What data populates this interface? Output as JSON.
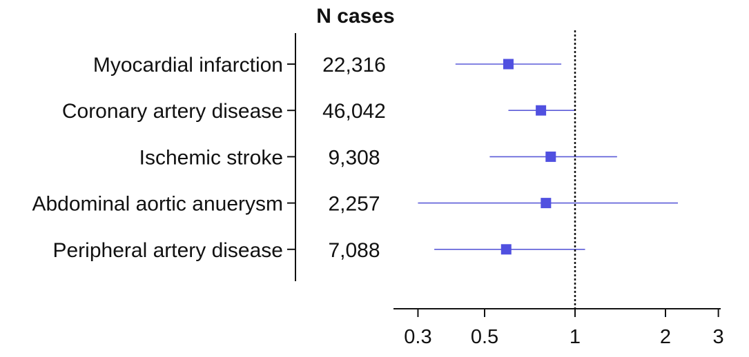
{
  "chart_data": {
    "type": "forest",
    "column_header": "N cases",
    "rows": [
      {
        "label": "Myocardial infarction",
        "n_cases": "22,316",
        "estimate": 0.6,
        "ci": [
          0.4,
          0.9
        ]
      },
      {
        "label": "Coronary artery disease",
        "n_cases": "46,042",
        "estimate": 0.77,
        "ci": [
          0.6,
          1.0
        ]
      },
      {
        "label": "Ischemic stroke",
        "n_cases": "9,308",
        "estimate": 0.83,
        "ci": [
          0.52,
          1.38
        ]
      },
      {
        "label": "Abdominal aortic anuerysm",
        "n_cases": "2,257",
        "estimate": 0.8,
        "ci": [
          0.3,
          2.2
        ]
      },
      {
        "label": "Peripheral artery disease",
        "n_cases": "7,088",
        "estimate": 0.59,
        "ci": [
          0.34,
          1.08
        ]
      }
    ],
    "x_scale": "log",
    "xlim": [
      0.25,
      3
    ],
    "x_ticks": [
      0.3,
      0.5,
      1,
      2,
      3
    ],
    "x_tick_labels": [
      "0.3",
      "0.5",
      "1",
      "2",
      "3"
    ],
    "reference_line": 1,
    "marker_color": "#5050e0",
    "line_color": "#5a5ad8"
  }
}
